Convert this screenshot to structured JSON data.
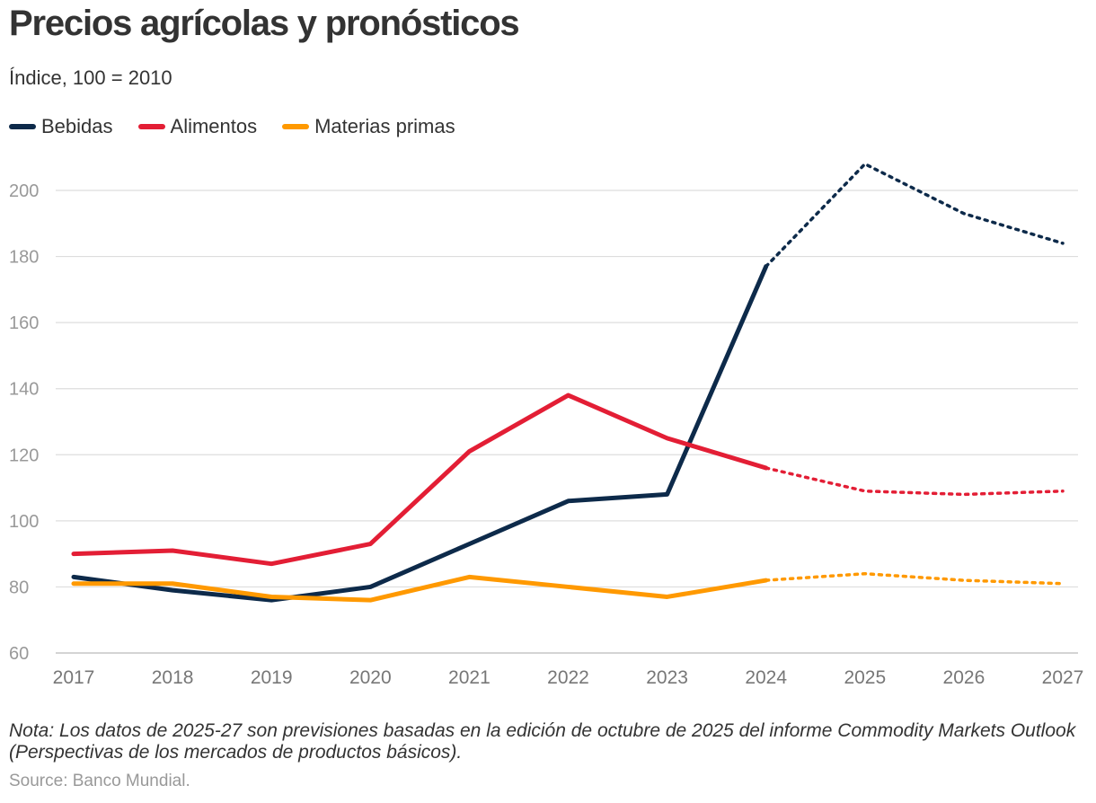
{
  "title": "Precios agrícolas y pronósticos",
  "subtitle": "Índice, 100 = 2010",
  "legend": [
    {
      "label": "Bebidas",
      "color": "#0d2a4a"
    },
    {
      "label": "Alimentos",
      "color": "#e31e35"
    },
    {
      "label": "Materias primas",
      "color": "#ff9900"
    }
  ],
  "note": "Nota: Los datos de 2025-27 son previsiones basadas en la edición de octubre de 2025 del informe Commodity Markets Outlook (Perspectivas de los mercados de productos básicos).",
  "source": "Source: Banco Mundial.",
  "chart_data": {
    "type": "line",
    "title": "Precios agrícolas y pronósticos",
    "ylabel": "Índice, 100 = 2010",
    "xlabel": "",
    "x": [
      2017,
      2018,
      2019,
      2020,
      2021,
      2022,
      2023,
      2024,
      2025,
      2026,
      2027
    ],
    "ylim": [
      60,
      210
    ],
    "yticks": [
      60,
      80,
      100,
      120,
      140,
      160,
      180,
      200
    ],
    "forecast_start": 2024,
    "grid": true,
    "series": [
      {
        "name": "Bebidas",
        "color": "#0d2a4a",
        "values": [
          83,
          79,
          76,
          80,
          93,
          106,
          108,
          177,
          208,
          193,
          184
        ]
      },
      {
        "name": "Alimentos",
        "color": "#e31e35",
        "values": [
          90,
          91,
          87,
          93,
          121,
          138,
          125,
          116,
          109,
          108,
          109
        ]
      },
      {
        "name": "Materias primas",
        "color": "#ff9900",
        "values": [
          81,
          81,
          77,
          76,
          83,
          80,
          77,
          82,
          84,
          82,
          81
        ]
      }
    ]
  }
}
